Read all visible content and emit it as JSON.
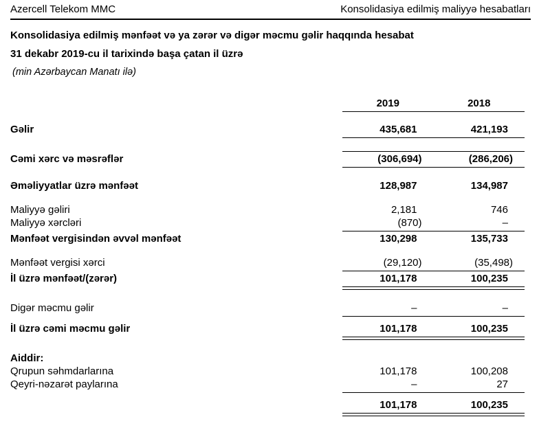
{
  "page_header": {
    "company": "Azercell Telekom MMC",
    "report_type": "Konsolidasiya edilmiş maliyyə hesabatları"
  },
  "title": {
    "statement_name": "Konsolidasiya edilmiş mənfəət və ya zərər və digər məcmu gəlir haqqında hesabat",
    "period": "31 dekabr 2019-cu il tarixində başa çatan il üzrə",
    "currency_note": "(min Azərbaycan Manatı ilə)"
  },
  "table": {
    "columns": [
      "2019",
      "2018"
    ],
    "rows": [
      {
        "label": "Gəlir",
        "y2019": "435,681",
        "y2018": "421,193",
        "bold": true,
        "gap": "lg",
        "rule_below": "single"
      },
      {
        "label": "Cəmi xərc və məsrəflər",
        "y2019": "(306,694)",
        "y2018": "(286,206)",
        "bold": true,
        "gap": "lg",
        "rule_above": "single",
        "rule_below": "single"
      },
      {
        "label": "Əməliyyatlar üzrə mənfəət",
        "y2019": "128,987",
        "y2018": "134,987",
        "bold": true,
        "gap": "lg"
      },
      {
        "label": "Maliyyə gəliri",
        "y2019": "2,181",
        "y2018": "746",
        "bold": false,
        "gap": "lg"
      },
      {
        "label": "Maliyyə xərcləri",
        "y2019": "(870)",
        "y2018": "–",
        "bold": false,
        "rule_below": "single"
      },
      {
        "label": "Mənfəət vergisindən əvvəl mənfəət",
        "y2019": "130,298",
        "y2018": "135,733",
        "bold": true
      },
      {
        "label": "Mənfəət vergisi xərci",
        "y2019": "(29,120)",
        "y2018": "(35,498)",
        "bold": false,
        "gap": "lg",
        "rule_below": "single"
      },
      {
        "label": "İl üzrə mənfəət/(zərər)",
        "y2019": "101,178",
        "y2018": "100,235",
        "bold": true,
        "rule_below": "double"
      },
      {
        "label": "Digər məcmu gəlir",
        "y2019": "–",
        "y2018": "–",
        "bold": false,
        "gap": "lg",
        "rule_below": "single"
      },
      {
        "label": "İl üzrə cəmi məcmu gəlir",
        "y2019": "101,178",
        "y2018": "100,235",
        "bold": true,
        "gap": "sm",
        "rule_below": "double"
      },
      {
        "label": "Aiddir:",
        "y2019": "",
        "y2018": "",
        "bold": true,
        "gap": "lg"
      },
      {
        "label": "Qrupun səhmdarlarına",
        "y2019": "101,178",
        "y2018": "100,208",
        "bold": false
      },
      {
        "label": "Qeyri-nəzarət paylarına",
        "y2019": "–",
        "y2018": "27",
        "bold": false,
        "rule_below": "single"
      },
      {
        "label": "",
        "y2019": "101,178",
        "y2018": "100,235",
        "bold": true,
        "gap": "sm",
        "rule_below": "double"
      }
    ]
  },
  "colors": {
    "text": "#000000",
    "background": "#ffffff",
    "rule": "#000000"
  }
}
